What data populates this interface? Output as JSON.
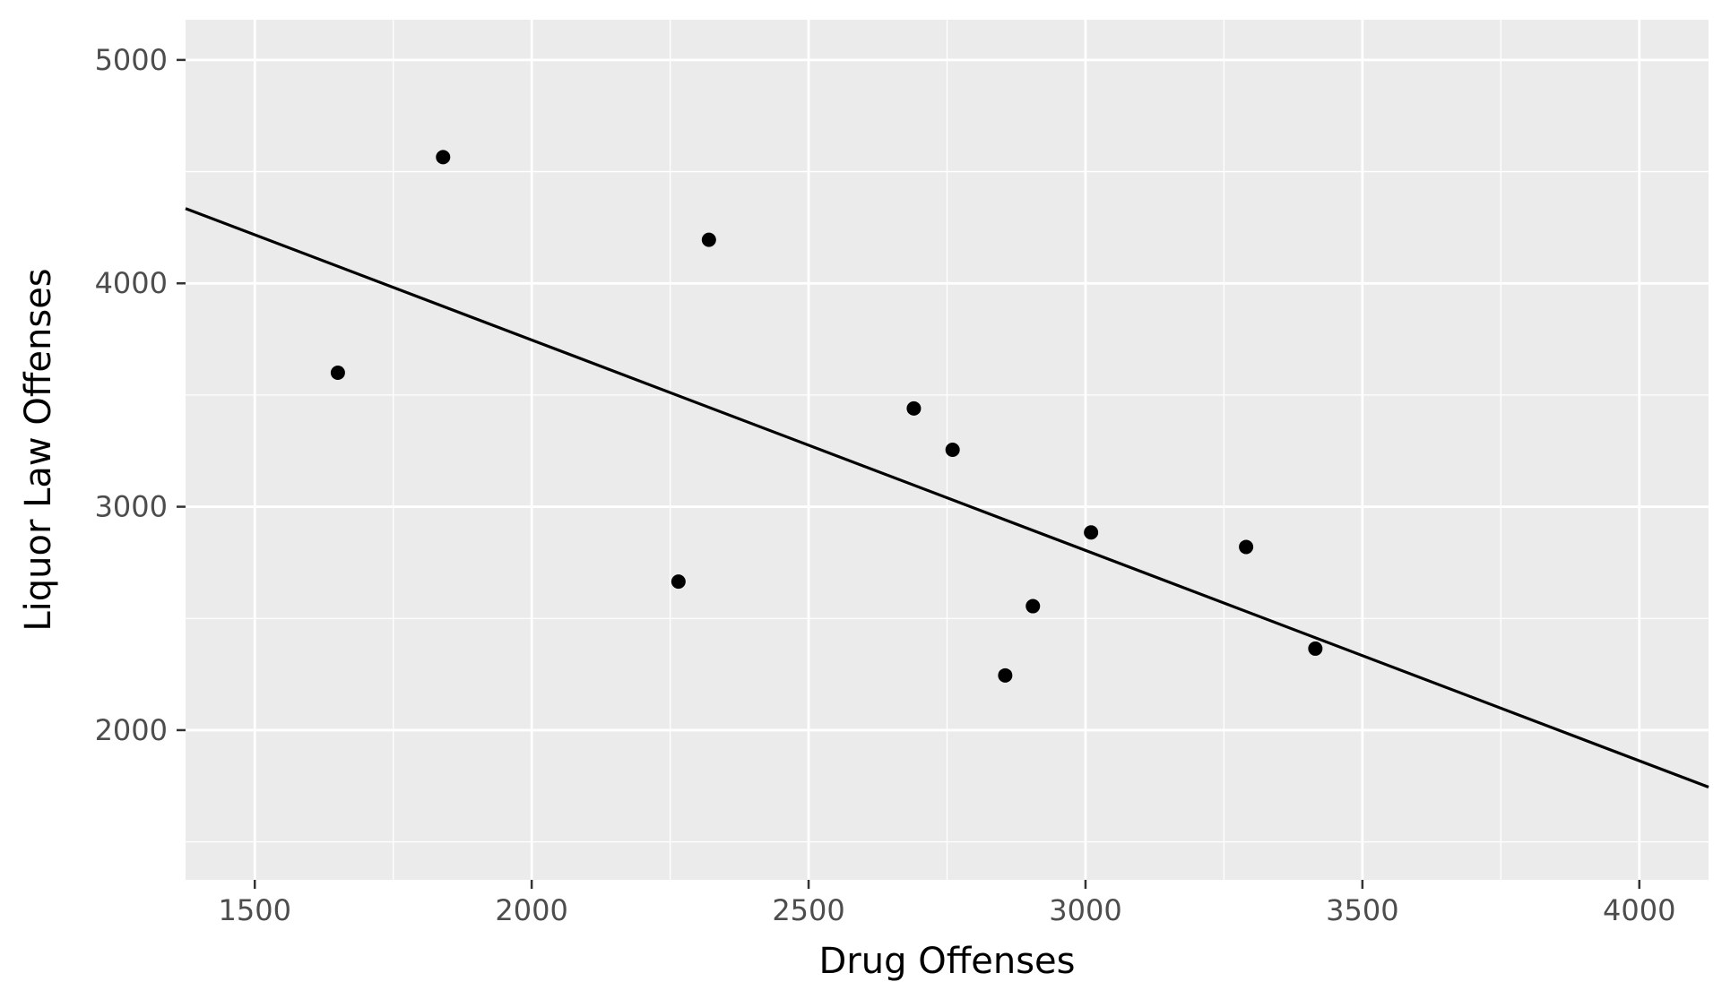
{
  "chart_data": {
    "type": "scatter",
    "title": "",
    "xlabel": "Drug Offenses",
    "ylabel": "Liquor Law Offenses",
    "xlim": [
      1375,
      4125
    ],
    "ylim": [
      1330,
      5180
    ],
    "x_ticks": [
      1500,
      2000,
      2500,
      3000,
      3500,
      4000
    ],
    "y_ticks": [
      2000,
      3000,
      4000,
      5000
    ],
    "x_tick_labels": [
      "1500",
      "2000",
      "2500",
      "3000",
      "3500",
      "4000"
    ],
    "y_tick_labels": [
      "2000",
      "3000",
      "4000",
      "5000"
    ],
    "grid": true,
    "legend": "none",
    "points": [
      {
        "x": 1650,
        "y": 3600
      },
      {
        "x": 1840,
        "y": 4565
      },
      {
        "x": 2265,
        "y": 2665
      },
      {
        "x": 2320,
        "y": 4195
      },
      {
        "x": 2690,
        "y": 3440
      },
      {
        "x": 2760,
        "y": 3255
      },
      {
        "x": 2855,
        "y": 2245
      },
      {
        "x": 2905,
        "y": 2555
      },
      {
        "x": 3010,
        "y": 2885
      },
      {
        "x": 3290,
        "y": 2820
      },
      {
        "x": 3415,
        "y": 2365
      }
    ],
    "trend_line": {
      "x": [
        1375,
        4125
      ],
      "y": [
        4335,
        1745
      ]
    },
    "colors": {
      "panel_background": "#ebebeb",
      "grid": "#ffffff",
      "points": "#000000",
      "line": "#000000"
    }
  }
}
